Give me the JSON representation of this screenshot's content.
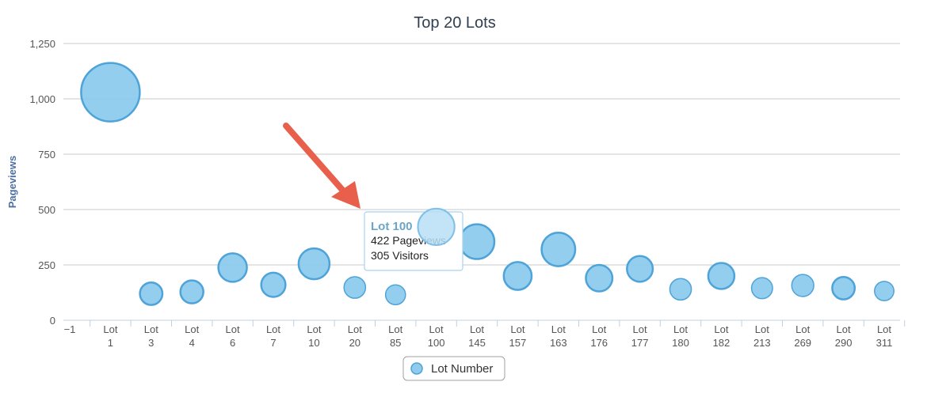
{
  "chart_data": {
    "type": "scatter",
    "title": "Top 20 Lots",
    "xlabel": "",
    "ylabel": "Pageviews",
    "ylim": [
      0,
      1250
    ],
    "y_ticks": [
      "0",
      "250",
      "500",
      "750",
      "1,000",
      "1,250"
    ],
    "x_first_tick": "−1",
    "grid": true,
    "legend_position": "bottom-center",
    "series": [
      {
        "name": "Lot Number",
        "color": "#8ecbed",
        "edge_color": "#4ea3d8",
        "points": [
          {
            "label": [
              "Lot",
              "1"
            ],
            "y": 1030,
            "size": 1000
          },
          {
            "label": [
              "Lot",
              "3"
            ],
            "y": 120,
            "size": 70
          },
          {
            "label": [
              "Lot",
              "4"
            ],
            "y": 128,
            "size": 75
          },
          {
            "label": [
              "Lot",
              "6"
            ],
            "y": 238,
            "size": 150
          },
          {
            "label": [
              "Lot",
              "7"
            ],
            "y": 160,
            "size": 90
          },
          {
            "label": [
              "Lot",
              "10"
            ],
            "y": 255,
            "size": 190
          },
          {
            "label": [
              "Lot",
              "20"
            ],
            "y": 148,
            "size": 60
          },
          {
            "label": [
              "Lot",
              "85"
            ],
            "y": 115,
            "size": 45
          },
          {
            "label": [
              "Lot",
              "100"
            ],
            "y": 422,
            "size": 305,
            "hovered": true
          },
          {
            "label": [
              "Lot",
              "145"
            ],
            "y": 355,
            "size": 265
          },
          {
            "label": [
              "Lot",
              "157"
            ],
            "y": 200,
            "size": 140
          },
          {
            "label": [
              "Lot",
              "163"
            ],
            "y": 320,
            "size": 240
          },
          {
            "label": [
              "Lot",
              "176"
            ],
            "y": 190,
            "size": 120
          },
          {
            "label": [
              "Lot",
              "177"
            ],
            "y": 232,
            "size": 110
          },
          {
            "label": [
              "Lot",
              "180"
            ],
            "y": 140,
            "size": 60
          },
          {
            "label": [
              "Lot",
              "182"
            ],
            "y": 200,
            "size": 115
          },
          {
            "label": [
              "Lot",
              "213"
            ],
            "y": 145,
            "size": 55
          },
          {
            "label": [
              "Lot",
              "269"
            ],
            "y": 157,
            "size": 65
          },
          {
            "label": [
              "Lot",
              "290"
            ],
            "y": 145,
            "size": 70
          },
          {
            "label": [
              "Lot",
              "311"
            ],
            "y": 132,
            "size": 40
          }
        ]
      }
    ],
    "tooltip": {
      "title": "Lot 100",
      "lines": [
        "422 Pageviews",
        "305 Visitors"
      ]
    },
    "annotation": {
      "type": "arrow",
      "color": "#e8604c",
      "points_to": "tooltip"
    }
  }
}
